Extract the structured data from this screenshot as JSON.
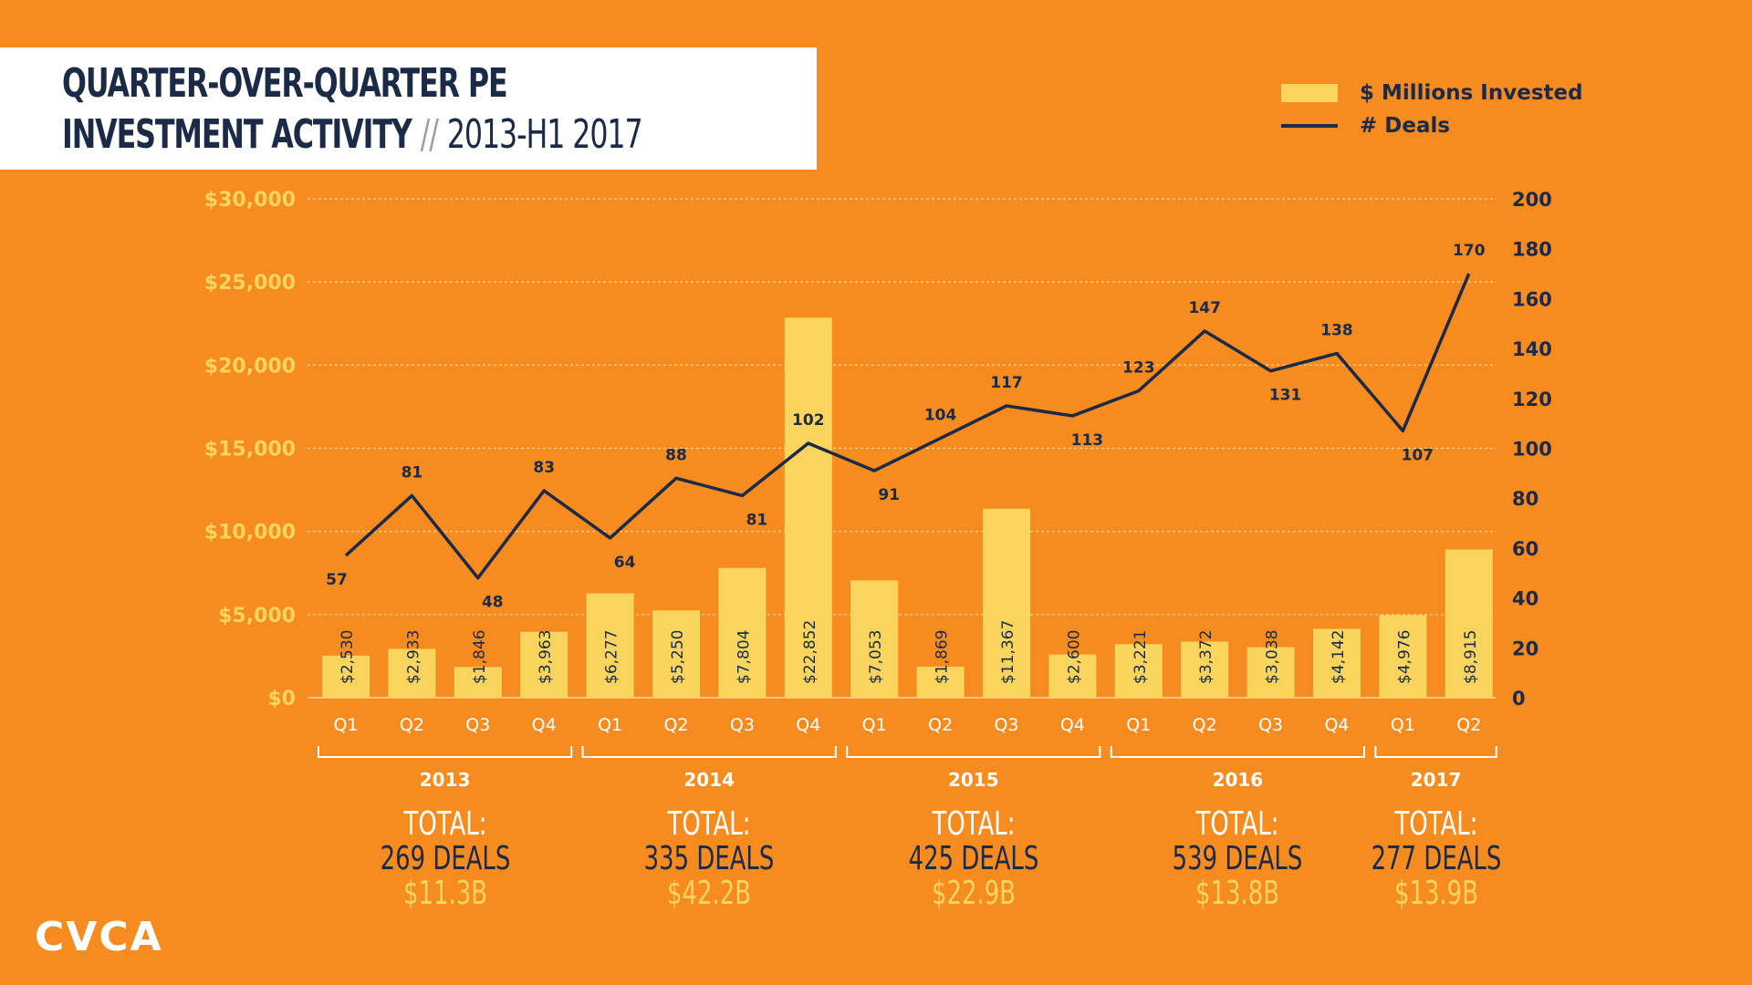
{
  "title": {
    "line1": "QUARTER-OVER-QUARTER PE",
    "line2": "INVESTMENT ACTIVITY",
    "separator": "//",
    "line2_sub": "2013-H1 2017"
  },
  "legend": {
    "bars_label": "$ Millions Invested",
    "line_label": "# Deals"
  },
  "logo": "CVCA",
  "colors": {
    "background": "#F68B1F",
    "bar": "#FAD55E",
    "line": "#1B2A47",
    "left_axis": "#FAD55E",
    "totals_amount": "#FAD55E"
  },
  "chart_data": {
    "type": "bar",
    "quarters": [
      "Q1",
      "Q2",
      "Q3",
      "Q4",
      "Q1",
      "Q2",
      "Q3",
      "Q4",
      "Q1",
      "Q2",
      "Q3",
      "Q4",
      "Q1",
      "Q2",
      "Q3",
      "Q4",
      "Q1",
      "Q2"
    ],
    "years": [
      "2013",
      "2013",
      "2013",
      "2013",
      "2014",
      "2014",
      "2014",
      "2014",
      "2015",
      "2015",
      "2015",
      "2015",
      "2016",
      "2016",
      "2016",
      "2016",
      "2017",
      "2017"
    ],
    "series": [
      {
        "name": "$ Millions Invested",
        "type": "bar",
        "axis": "left",
        "values": [
          2530,
          2933,
          1846,
          3963,
          6277,
          5250,
          7804,
          22852,
          7053,
          1869,
          11367,
          2600,
          3221,
          3372,
          3038,
          4142,
          4976,
          8915
        ],
        "labels": [
          "$2,530",
          "$2,933",
          "$1,846",
          "$3,963",
          "$6,277",
          "$5,250",
          "$7,804",
          "$22,852",
          "$7,053",
          "$1,869",
          "$11,367",
          "$2,600",
          "$3,221",
          "$3,372",
          "$3,038",
          "$4,142",
          "$4,976",
          "$8,915"
        ]
      },
      {
        "name": "# Deals",
        "type": "line",
        "axis": "right",
        "values": [
          57,
          81,
          48,
          83,
          64,
          88,
          81,
          102,
          91,
          104,
          117,
          113,
          123,
          147,
          131,
          138,
          107,
          170
        ]
      }
    ],
    "left_axis": {
      "ylim": [
        0,
        30000
      ],
      "ticks": [
        0,
        5000,
        10000,
        15000,
        20000,
        25000,
        30000
      ],
      "tick_labels": [
        "$0",
        "$5,000",
        "$10,000",
        "$15,000",
        "$20,000",
        "$25,000",
        "$30,000"
      ]
    },
    "right_axis": {
      "ylim": [
        0,
        200
      ],
      "ticks": [
        0,
        20,
        40,
        60,
        80,
        100,
        120,
        140,
        160,
        180,
        200
      ],
      "tick_labels": [
        "0",
        "20",
        "40",
        "60",
        "80",
        "100",
        "120",
        "140",
        "160",
        "180",
        "200"
      ]
    },
    "grid": true,
    "legend_position": "top-right",
    "year_groups": [
      {
        "year": "2013",
        "label": "TOTAL:",
        "deals": "269 DEALS",
        "amount": "$11.3B"
      },
      {
        "year": "2014",
        "label": "TOTAL:",
        "deals": "335 DEALS",
        "amount": "$42.2B"
      },
      {
        "year": "2015",
        "label": "TOTAL:",
        "deals": "425 DEALS",
        "amount": "$22.9B"
      },
      {
        "year": "2016",
        "label": "TOTAL:",
        "deals": "539 DEALS",
        "amount": "$13.8B"
      },
      {
        "year": "2017",
        "label": "TOTAL:",
        "deals": "277 DEALS",
        "amount": "$13.9B"
      }
    ]
  }
}
